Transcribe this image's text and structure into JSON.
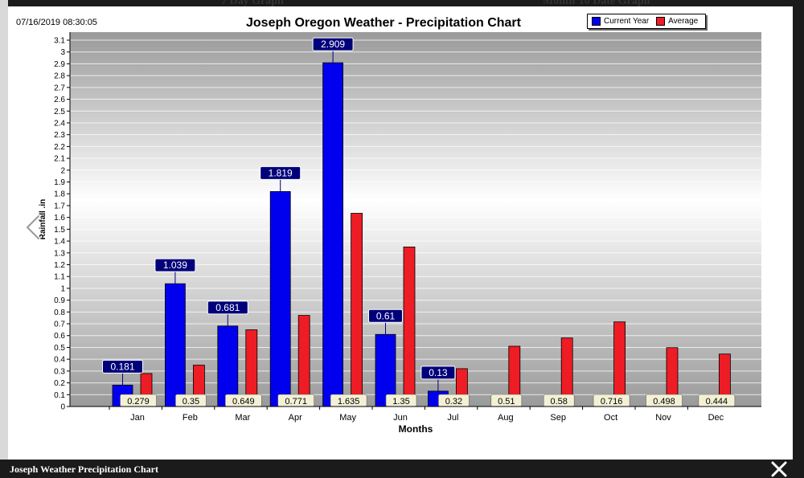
{
  "background": {
    "title_left": "7 Day Graph",
    "title_right": "Month To Date Graph"
  },
  "modal": {
    "timestamp": "07/16/2019 08:30:05",
    "caption": "Joseph Weather Precipitation Chart",
    "close_icon": "close-icon",
    "prev_icon": "chevron-left-icon"
  },
  "colors": {
    "current_year": "#0000ee",
    "average": "#ee1c24",
    "label_bg_current": "#00007a",
    "label_bg_average": "#f3f0d6"
  },
  "chart_data": {
    "type": "bar",
    "title": "Joseph Oregon Weather - Precipitation Chart",
    "xlabel": "Months",
    "ylabel": "Rainfall .in",
    "ylim": [
      0,
      3.1
    ],
    "ytick_step": 0.1,
    "legend_position": "top-right",
    "grid": true,
    "categories": [
      "Jan",
      "Feb",
      "Mar",
      "Apr",
      "May",
      "Jun",
      "Jul",
      "Aug",
      "Sep",
      "Oct",
      "Nov",
      "Dec"
    ],
    "series": [
      {
        "name": "Current Year",
        "values": [
          0.181,
          1.039,
          0.681,
          1.819,
          2.909,
          0.61,
          0.13,
          null,
          null,
          null,
          null,
          null
        ]
      },
      {
        "name": "Average",
        "values": [
          0.279,
          0.35,
          0.649,
          0.771,
          1.635,
          1.35,
          0.32,
          0.51,
          0.58,
          0.716,
          0.498,
          0.444
        ]
      }
    ]
  }
}
